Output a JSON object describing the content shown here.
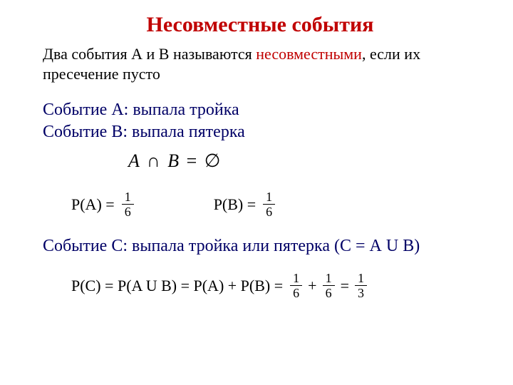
{
  "title": {
    "text": "Несовместные события",
    "color": "#c00000",
    "fontsize": 30
  },
  "definition": {
    "pre": "Два события А и В называются ",
    "highlight": "несовместными",
    "post": ", если их пресечение пусто",
    "fontsize": 22
  },
  "events": {
    "a": "Событие А: выпала тройка",
    "b": "Событие В: выпала пятерка",
    "color": "#000066",
    "fontsize": 24
  },
  "intersection": {
    "lhs_A": "A",
    "cap": "∩",
    "lhs_B": "B",
    "eq": "=",
    "empty": "∅",
    "fontsize": 26
  },
  "probA": {
    "label": "P(A) =",
    "num": "1",
    "den": "6",
    "label_fontsize": 22,
    "frac_fontsize": 18
  },
  "probB": {
    "label": "P(B) =",
    "num": "1",
    "den": "6",
    "label_fontsize": 22,
    "frac_fontsize": 18
  },
  "eventC": {
    "text": "Событие С: выпала тройка или пятерка (С = А U В)",
    "color": "#000066",
    "fontsize": 24
  },
  "probC": {
    "lhs": "P(C) = P(A U B) = P(A) + P(B) =",
    "f1": {
      "num": "1",
      "den": "6"
    },
    "plus": "+",
    "f2": {
      "num": "1",
      "den": "6"
    },
    "eq": "=",
    "f3": {
      "num": "1",
      "den": "3"
    },
    "label_fontsize": 22,
    "frac_fontsize": 18
  },
  "colors": {
    "background": "#ffffff",
    "text": "#000000",
    "red": "#c00000",
    "navy": "#000066"
  }
}
